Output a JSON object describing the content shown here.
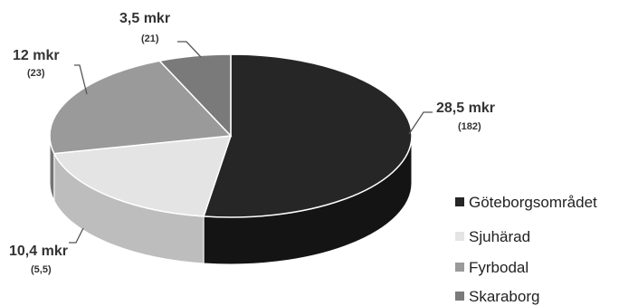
{
  "chart_data": {
    "type": "pie",
    "title": "",
    "three_d": true,
    "legend_position": "right",
    "slices": [
      {
        "name": "Göteborgsområdet",
        "value": 28.5,
        "label": "28,5 mkr",
        "sublabel": "(182)",
        "color": "#262626",
        "side_color": "#141414"
      },
      {
        "name": "Sjuhärad",
        "value": 10.4,
        "label": "10,4 mkr",
        "sublabel": "(5,5)",
        "color": "#e4e4e4",
        "side_color": "#bdbdbd"
      },
      {
        "name": "Fyrbodal",
        "value": 12,
        "label": "12 mkr",
        "sublabel": "(23)",
        "color": "#9a9a9a",
        "side_color": "#747474"
      },
      {
        "name": "Skaraborg",
        "value": 3.5,
        "label": "3,5 mkr",
        "sublabel": "(21)",
        "color": "#7a7a7a",
        "side_color": "#5a5a5a"
      }
    ]
  }
}
